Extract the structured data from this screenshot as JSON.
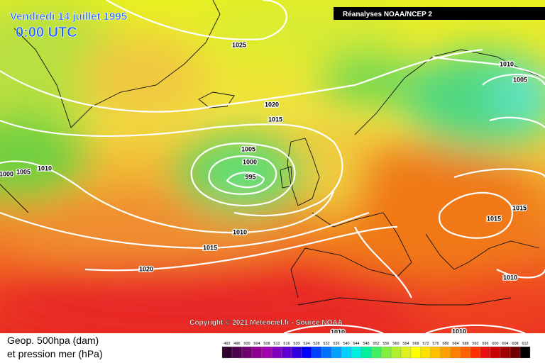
{
  "header": {
    "date": "Vendredi 14 juillet 1995",
    "time": "0:00 UTC",
    "source": "Réanalyses NOAA/NCEP 2"
  },
  "isobar_labels": [
    1025,
    1020,
    1015,
    1005,
    1000,
    995,
    1010,
    1005,
    1000,
    1010,
    1015,
    1020,
    1010,
    1005,
    1015,
    1015,
    1010,
    1010,
    1010
  ],
  "copyright": "Copyright © 2021 Meteociel.fr - Source NOAA",
  "legend": {
    "line1": "Geop. 500hpa (dam)",
    "line2": "et pression mer (hPa)",
    "scale": [
      492,
      496,
      500,
      504,
      508,
      512,
      516,
      520,
      524,
      528,
      532,
      536,
      540,
      544,
      548,
      552,
      556,
      560,
      564,
      568,
      572,
      576,
      580,
      584,
      588,
      592,
      596,
      600,
      604,
      608,
      612
    ]
  }
}
